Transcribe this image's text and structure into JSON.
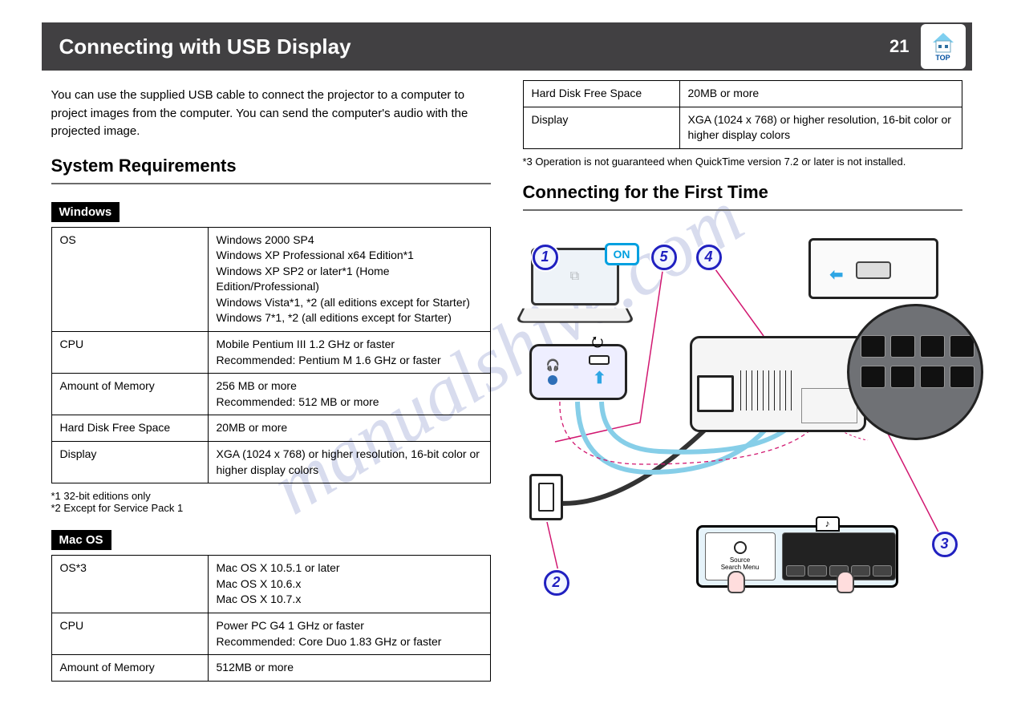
{
  "header": {
    "title": "Connecting with USB Display",
    "page_number": "21",
    "home_label": "TOP"
  },
  "intro": "You can use the supplied USB cable to connect the projector to a computer to project images from the computer. You can send the computer's audio with the projected image.",
  "section_heading": "System Requirements",
  "windows_label": "Windows",
  "windows_rows": [
    {
      "k": "OS",
      "v": "Windows 2000 SP4\nWindows XP Professional x64 Edition*1\nWindows XP SP2 or later*1 (Home Edition/Professional)\nWindows Vista*1, *2 (all editions except for Starter)\nWindows 7*1, *2 (all editions except for Starter)"
    },
    {
      "k": "CPU",
      "v": "Mobile Pentium III 1.2 GHz or faster\nRecommended: Pentium M 1.6 GHz or faster"
    },
    {
      "k": "Amount of Memory",
      "v": "256 MB or more\nRecommended: 512 MB or more"
    },
    {
      "k": "Hard Disk Free Space",
      "v": "20MB or more"
    },
    {
      "k": "Display",
      "v": "XGA (1024 x 768) or higher resolution, 16-bit color or higher display colors"
    }
  ],
  "windows_foot": "*1 32-bit editions only\n*2 Except for Service Pack 1",
  "mac_label": "Mac OS",
  "mac_top_rows": [
    {
      "k": "OS*3",
      "v": "Mac OS X 10.5.1 or later\nMac OS X 10.6.x\nMac OS X 10.7.x"
    },
    {
      "k": "CPU",
      "v": "Power PC G4 1 GHz or faster\nRecommended: Core Duo 1.83 GHz or faster"
    },
    {
      "k": "Amount of Memory",
      "v": "512MB or more"
    }
  ],
  "mac_cont_rows": [
    {
      "k": "Hard Disk Free Space",
      "v": "20MB or more"
    },
    {
      "k": "Display",
      "v": "XGA (1024 x 768) or higher resolution, 16-bit color or higher display colors"
    }
  ],
  "mac_foot": "*3 Operation is not guaranteed when QuickTime version 7.2 or later is not installed.",
  "diagram_heading": "Connecting for the First Time",
  "diagram": {
    "laptop_on": "ON",
    "callouts": [
      "1",
      "2",
      "3",
      "4",
      "5"
    ]
  },
  "colors": {
    "header_bg": "#414042",
    "callout_border": "#2020c0",
    "accent_blue": "#2ea6e4",
    "lead_magenta": "#d11770",
    "usb_cable": "#86cee8",
    "watermark": "rgba(60,80,170,0.20)"
  },
  "watermark": "manualshive.com"
}
